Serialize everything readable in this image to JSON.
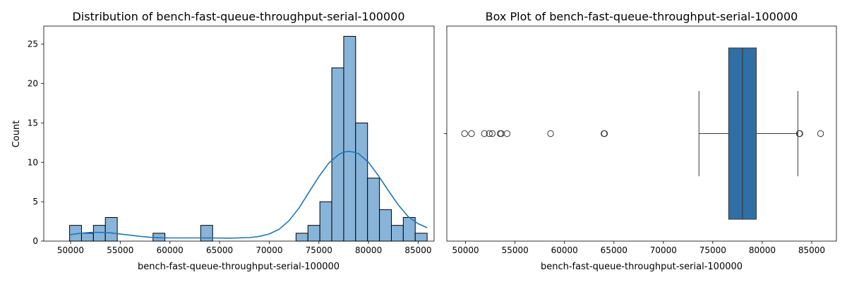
{
  "colors": {
    "hist_fill": "#89b4d9",
    "hist_edge": "#000000",
    "kde_line": "#1f77b4",
    "box_fill": "#2f6fa6",
    "box_edge": "#3a3a3a"
  },
  "chart_data": [
    {
      "type": "bar",
      "subtype": "histogram-with-kde",
      "title": "Distribution of bench-fast-queue-throughput-serial-100000",
      "xlabel": "bench-fast-queue-throughput-serial-100000",
      "ylabel": "Count",
      "xlim": [
        47300,
        86600
      ],
      "ylim": [
        0,
        27.3
      ],
      "xticks": [
        50000,
        55000,
        60000,
        65000,
        70000,
        75000,
        80000,
        85000
      ],
      "yticks": [
        0,
        5,
        10,
        15,
        20,
        25
      ],
      "grid": false,
      "bins": [
        {
          "x0": 49900,
          "x1": 51100,
          "count": 2
        },
        {
          "x0": 51100,
          "x1": 52300,
          "count": 1
        },
        {
          "x0": 52300,
          "x1": 53500,
          "count": 2
        },
        {
          "x0": 53500,
          "x1": 54700,
          "count": 3
        },
        {
          "x0": 58300,
          "x1": 59500,
          "count": 1
        },
        {
          "x0": 63100,
          "x1": 64300,
          "count": 2
        },
        {
          "x0": 72700,
          "x1": 73900,
          "count": 1
        },
        {
          "x0": 73900,
          "x1": 75100,
          "count": 2
        },
        {
          "x0": 75100,
          "x1": 76300,
          "count": 5
        },
        {
          "x0": 76300,
          "x1": 77500,
          "count": 22
        },
        {
          "x0": 77500,
          "x1": 78700,
          "count": 26
        },
        {
          "x0": 78700,
          "x1": 79900,
          "count": 15
        },
        {
          "x0": 79900,
          "x1": 81100,
          "count": 8
        },
        {
          "x0": 81100,
          "x1": 82300,
          "count": 4
        },
        {
          "x0": 82300,
          "x1": 83500,
          "count": 2
        },
        {
          "x0": 83500,
          "x1": 84700,
          "count": 3
        },
        {
          "x0": 84700,
          "x1": 85900,
          "count": 1
        }
      ],
      "kde": {
        "x": [
          49900,
          51000,
          52000,
          53000,
          54000,
          55000,
          56000,
          57000,
          58000,
          59000,
          60000,
          62000,
          64000,
          66000,
          68000,
          69000,
          70000,
          71000,
          72000,
          73000,
          74000,
          75000,
          76000,
          77000,
          77500,
          78000,
          78500,
          79000,
          80000,
          81000,
          82000,
          83000,
          84000,
          85000,
          85900
        ],
        "y": [
          0.8,
          1.0,
          1.1,
          1.1,
          1.05,
          0.9,
          0.75,
          0.6,
          0.48,
          0.42,
          0.4,
          0.4,
          0.4,
          0.38,
          0.45,
          0.6,
          0.9,
          1.5,
          2.6,
          4.2,
          6.2,
          8.2,
          9.9,
          11.0,
          11.3,
          11.4,
          11.3,
          11.1,
          10.0,
          8.3,
          6.4,
          4.6,
          3.1,
          2.2,
          1.7
        ]
      }
    },
    {
      "type": "box",
      "title": "Box Plot of bench-fast-queue-throughput-serial-100000",
      "xlabel": "bench-fast-queue-throughput-serial-100000",
      "xlim": [
        48100,
        87500
      ],
      "xticks": [
        50000,
        55000,
        60000,
        65000,
        70000,
        75000,
        80000,
        85000
      ],
      "grid": false,
      "box": {
        "whisker_low": 73600,
        "q1": 76600,
        "median": 78000,
        "q3": 79400,
        "whisker_high": 83600
      },
      "outliers": [
        49900,
        50600,
        51900,
        52400,
        52700,
        53500,
        53600,
        54200,
        58600,
        64000,
        64050,
        83750,
        83800,
        85900
      ]
    }
  ]
}
